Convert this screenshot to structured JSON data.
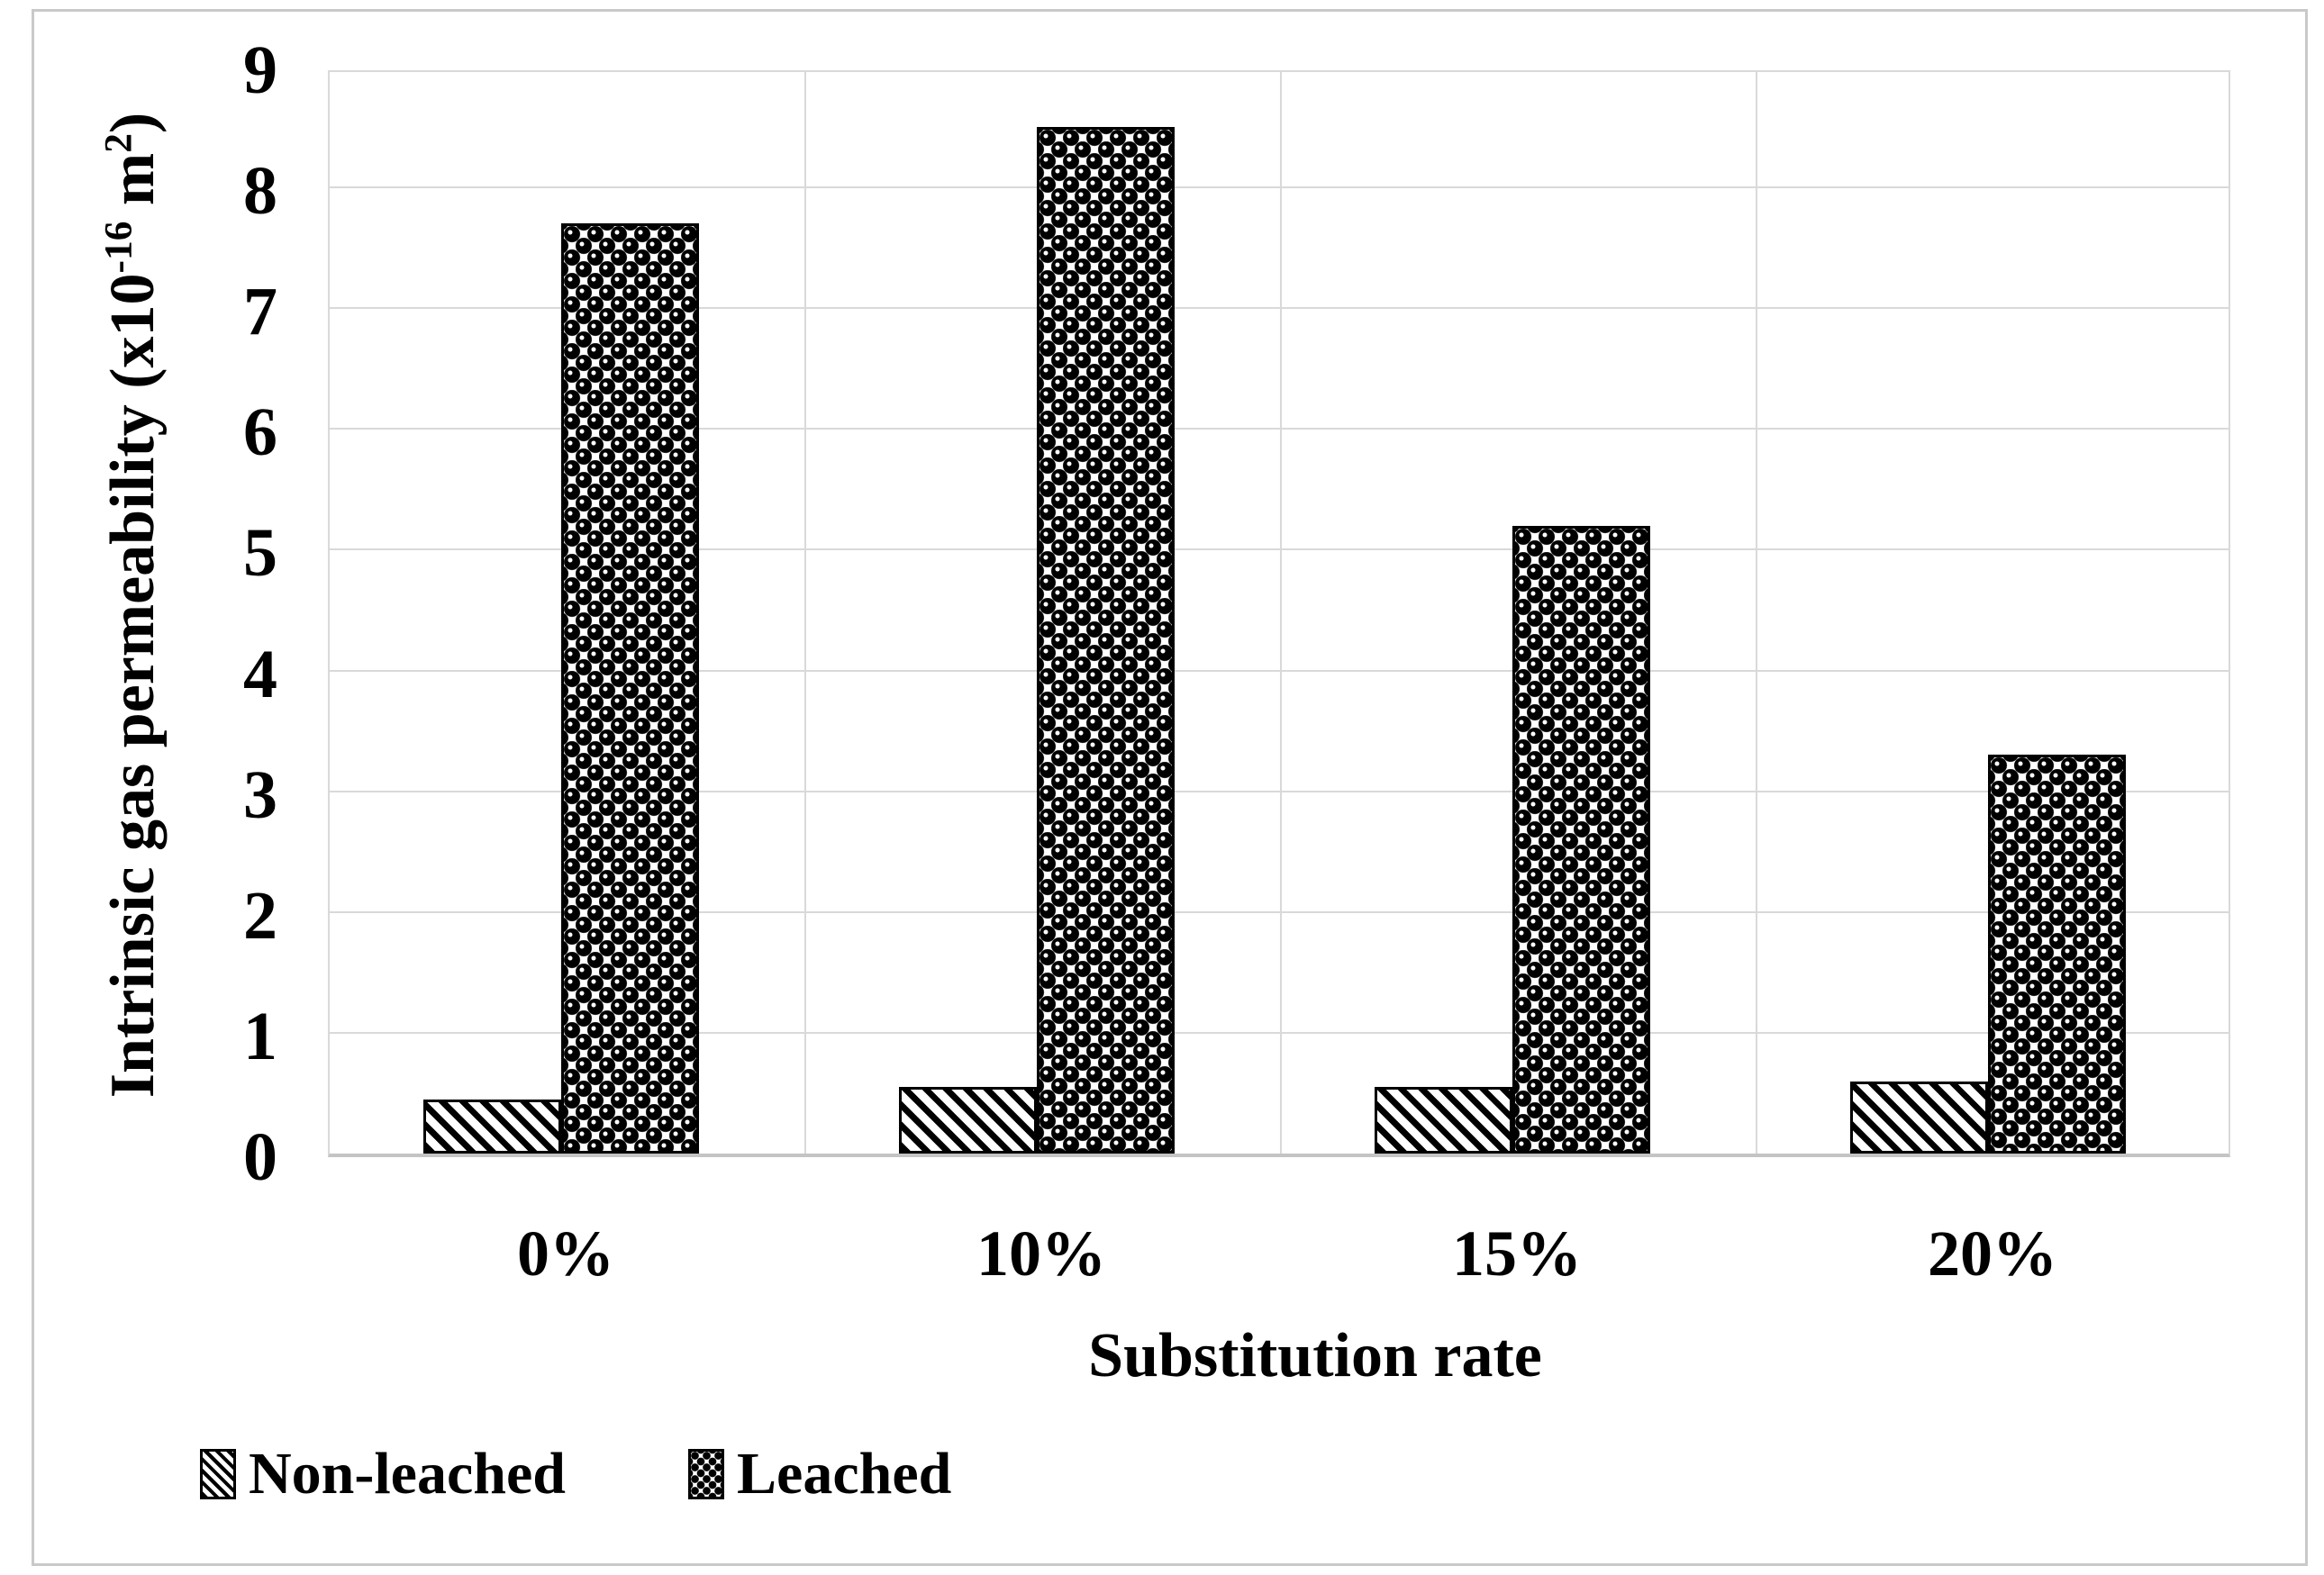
{
  "chart_data": {
    "type": "bar",
    "title": "",
    "categories": [
      "0%",
      "10%",
      "15%",
      "20%"
    ],
    "series": [
      {
        "name": "Non-leached",
        "pattern": "diagonal-hatch",
        "values": [
          0.45,
          0.55,
          0.55,
          0.6
        ]
      },
      {
        "name": "Leached",
        "pattern": "dark-balls",
        "values": [
          7.7,
          8.5,
          5.2,
          3.3
        ]
      }
    ],
    "xlabel": "Substitution rate",
    "ylabel": "Intrinsic gas permeability (x10^-16 m^2)",
    "ylabel_parts": {
      "pre": "Intrinsic gas permeability (x10",
      "sup1": "-16",
      "mid": " m",
      "sup2": "2",
      "post": ")"
    },
    "ylim": [
      0,
      9
    ],
    "ytick_step": 1,
    "yticks": [
      "0",
      "1",
      "2",
      "3",
      "4",
      "5",
      "6",
      "7",
      "8",
      "9"
    ],
    "grid": "horizontal-gridlines-and-category-separators",
    "legend_position": "bottom-left",
    "colors": {
      "bar_fill": "#000000",
      "background": "#ffffff",
      "gridline": "#d9d9d9",
      "axis_line": "#c4c4c4",
      "frame_border": "#c9c9c9",
      "text": "#000000"
    }
  }
}
